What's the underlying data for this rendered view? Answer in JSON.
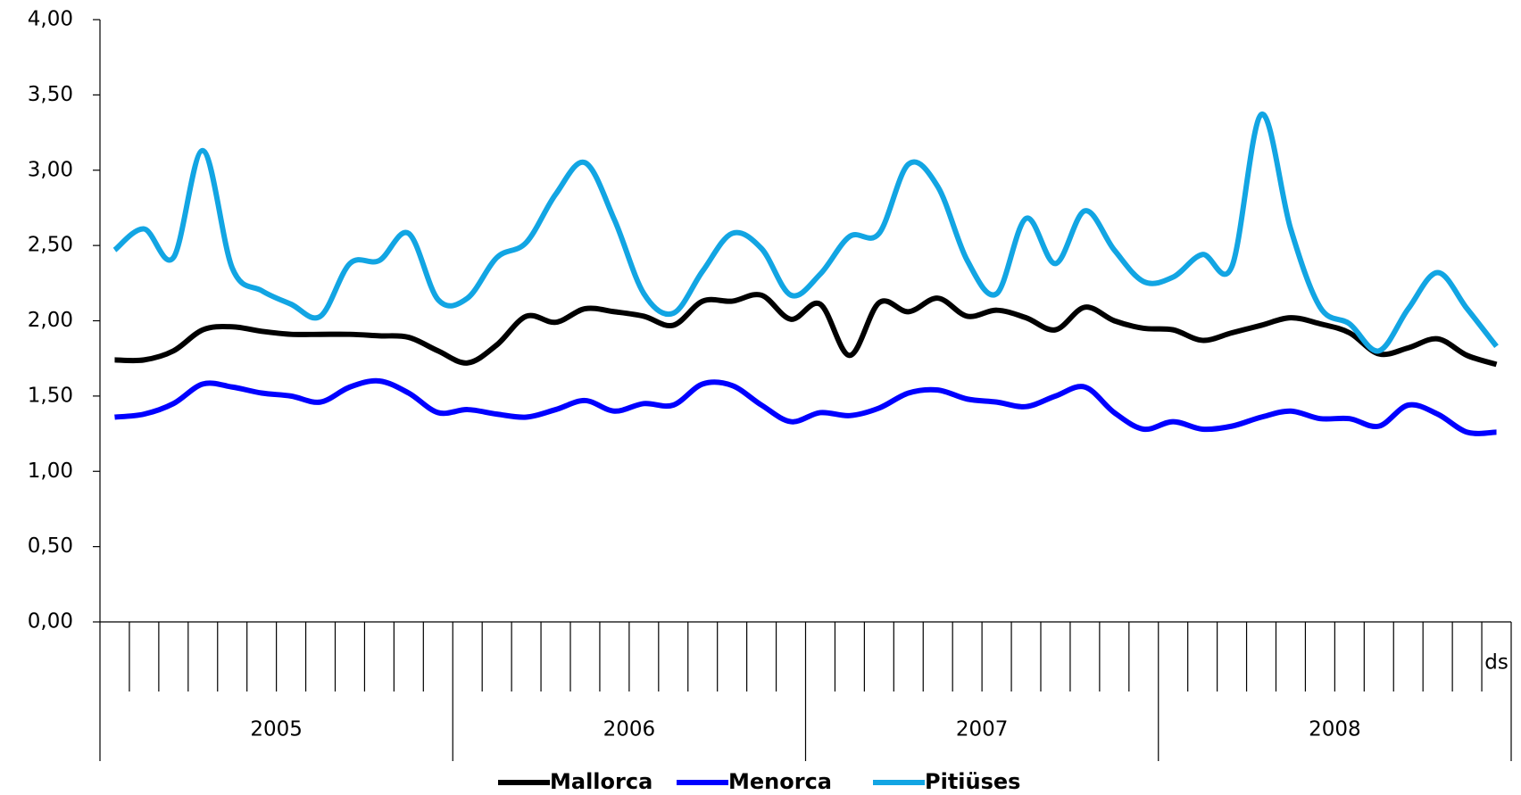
{
  "chart_data": {
    "type": "line",
    "categories": [
      null,
      null,
      null,
      null,
      null,
      null,
      null,
      null,
      null,
      null,
      null,
      null,
      null,
      null,
      null,
      null,
      null,
      null,
      null,
      null,
      null,
      null,
      null,
      null,
      null,
      null,
      null,
      null,
      null,
      null,
      null,
      null,
      null,
      null,
      null,
      null,
      null,
      null,
      null,
      null,
      null,
      null,
      null,
      null,
      null,
      null,
      null,
      "ds"
    ],
    "groups": [
      "2005",
      "2006",
      "2007",
      "2008"
    ],
    "series": [
      {
        "name": "Mallorca",
        "color": "#000000",
        "values": [
          1.74,
          1.74,
          1.8,
          1.94,
          1.96,
          1.93,
          1.91,
          1.91,
          1.91,
          1.9,
          1.89,
          1.8,
          1.72,
          1.84,
          2.03,
          1.99,
          2.08,
          2.06,
          2.03,
          1.97,
          2.13,
          2.13,
          2.17,
          2.01,
          2.11,
          1.77,
          2.12,
          2.06,
          2.15,
          2.03,
          2.07,
          2.02,
          1.94,
          2.09,
          2.0,
          1.95,
          1.94,
          1.87,
          1.92,
          1.97,
          2.02,
          1.98,
          1.92,
          1.78,
          1.82,
          1.88,
          1.77,
          1.71
        ]
      },
      {
        "name": "Menorca",
        "color": "#0000ff",
        "values": [
          1.36,
          1.38,
          1.45,
          1.58,
          1.56,
          1.52,
          1.5,
          1.46,
          1.56,
          1.6,
          1.52,
          1.39,
          1.41,
          1.38,
          1.36,
          1.41,
          1.47,
          1.4,
          1.45,
          1.44,
          1.58,
          1.57,
          1.44,
          1.33,
          1.39,
          1.37,
          1.42,
          1.52,
          1.54,
          1.48,
          1.46,
          1.43,
          1.5,
          1.56,
          1.39,
          1.28,
          1.33,
          1.28,
          1.3,
          1.36,
          1.4,
          1.35,
          1.35,
          1.3,
          1.44,
          1.38,
          1.26,
          1.26
        ]
      },
      {
        "name": "Pitiüses",
        "color": "#12a5e3",
        "values": [
          2.47,
          2.61,
          2.42,
          3.13,
          2.35,
          2.2,
          2.11,
          2.03,
          2.38,
          2.4,
          2.58,
          2.14,
          2.15,
          2.42,
          2.52,
          2.84,
          3.05,
          2.67,
          2.18,
          2.05,
          2.33,
          2.58,
          2.48,
          2.17,
          2.31,
          2.56,
          2.58,
          3.04,
          2.89,
          2.4,
          2.18,
          2.68,
          2.38,
          2.73,
          2.47,
          2.26,
          2.29,
          2.44,
          2.36,
          3.37,
          2.61,
          2.09,
          1.98,
          1.8,
          2.08,
          2.32,
          2.08,
          1.83
        ]
      }
    ],
    "ylim": [
      0,
      4
    ],
    "yticks": [
      {
        "value": 0,
        "label": "0,00"
      },
      {
        "value": 0.5,
        "label": "0,50"
      },
      {
        "value": 1,
        "label": "1,00"
      },
      {
        "value": 1.5,
        "label": "1,50"
      },
      {
        "value": 2,
        "label": "2,00"
      },
      {
        "value": 2.5,
        "label": "2,50"
      },
      {
        "value": 3,
        "label": "3,00"
      },
      {
        "value": 3.5,
        "label": "3,50"
      },
      {
        "value": 4,
        "label": "4,00"
      }
    ]
  }
}
